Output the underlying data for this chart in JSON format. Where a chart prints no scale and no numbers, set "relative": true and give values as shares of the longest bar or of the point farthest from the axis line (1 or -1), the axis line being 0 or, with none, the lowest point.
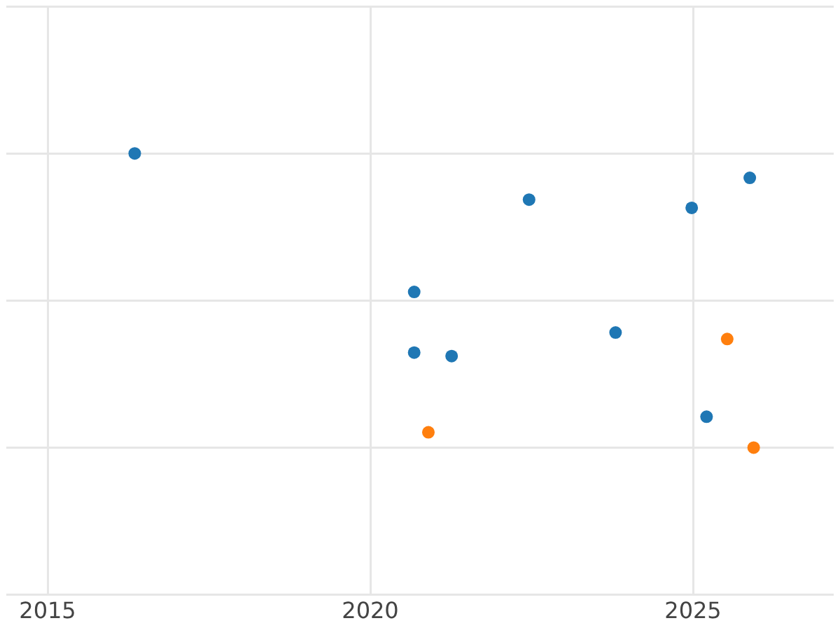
{
  "chart_data": {
    "type": "scatter",
    "relative": true,
    "grid": true,
    "marker": "circle",
    "xlim": [
      2014.36,
      2027.18
    ],
    "xticks": [
      2015,
      2020,
      2025
    ],
    "tick_labels": "x",
    "series": [
      {
        "color": "#1f77b4",
        "x": [
          2016.35,
          2022.46,
          2024.98,
          2025.88,
          2020.68,
          2023.8,
          2020.68,
          2021.26,
          2025.21
        ],
        "values": [
          1,
          0.843,
          0.815,
          0.917,
          0.529,
          0.391,
          0.323,
          0.311,
          0.105
        ]
      },
      {
        "color": "#ff7f0e",
        "x": [
          2025.53,
          2020.9,
          2025.94
        ],
        "values": [
          0.369,
          0.052,
          0
        ]
      }
    ]
  }
}
